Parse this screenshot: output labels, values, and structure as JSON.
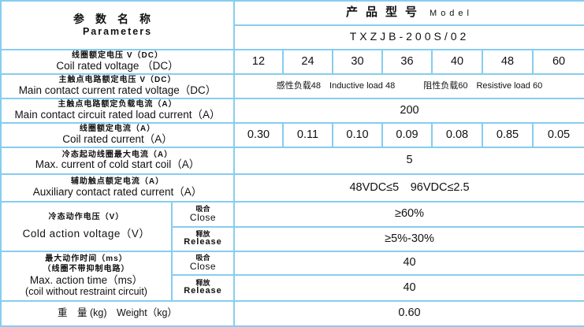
{
  "header": {
    "param_cn": "参数名称",
    "param_en": "Parameters",
    "model_cn": "产品型号",
    "model_en": "Model",
    "model_code": "TXZJB-200S/02"
  },
  "rows": {
    "coil_voltage": {
      "cn": "线圈额定电压 V（DC）",
      "en": "Coil rated voltage （DC）",
      "values": [
        "12",
        "24",
        "30",
        "36",
        "40",
        "48",
        "60"
      ]
    },
    "main_voltage": {
      "cn": "主触点电路额定电压 V（DC）",
      "en": "Main contact current rated voltage（DC）",
      "inductive": "感性负载48　Inductive load 48",
      "resistive": "阻性负载60　Resistive load 60"
    },
    "main_current": {
      "cn": "主触点电路额定负载电流（A）",
      "en": "Main contact circuit rated load current（A）",
      "value": "200"
    },
    "coil_current": {
      "cn": "线圈额定电流（A）",
      "en": "Coil rated current（A）",
      "values": [
        "0.30",
        "0.11",
        "0.10",
        "0.09",
        "0.08",
        "0.85",
        "0.05"
      ]
    },
    "cold_start": {
      "cn": "冷态起动线圈最大电流（A）",
      "en": "Max. current of cold start coil（A）",
      "value": "5"
    },
    "aux_current": {
      "cn": "辅助触点额定电流（A）",
      "en": "Auxiliary contact rated current（A）",
      "value": "48VDC≤5　96VDC≤2.5"
    },
    "cold_action": {
      "cn": "冷态动作电压（V）",
      "en": "Cold action voltage（V）",
      "close_cn": "吸合",
      "close_en": "Close",
      "close_value": "≥60%",
      "release_cn": "释放",
      "release_en": "Release",
      "release_value": "≥5%-30%"
    },
    "action_time": {
      "cn1": "最大动作时间（ms）",
      "cn2": "（线圈不带抑制电路）",
      "en1": "Max. action time（ms）",
      "en2": "(coil without restraint circuit)",
      "close_cn": "吸合",
      "close_en": "Close",
      "close_value": "40",
      "release_cn": "释放",
      "release_en": "Release",
      "release_value": "40"
    },
    "weight": {
      "label": "重　量 (kg)　Weight（kg）",
      "value": "0.60"
    }
  },
  "colors": {
    "border": "#86cdf0"
  }
}
